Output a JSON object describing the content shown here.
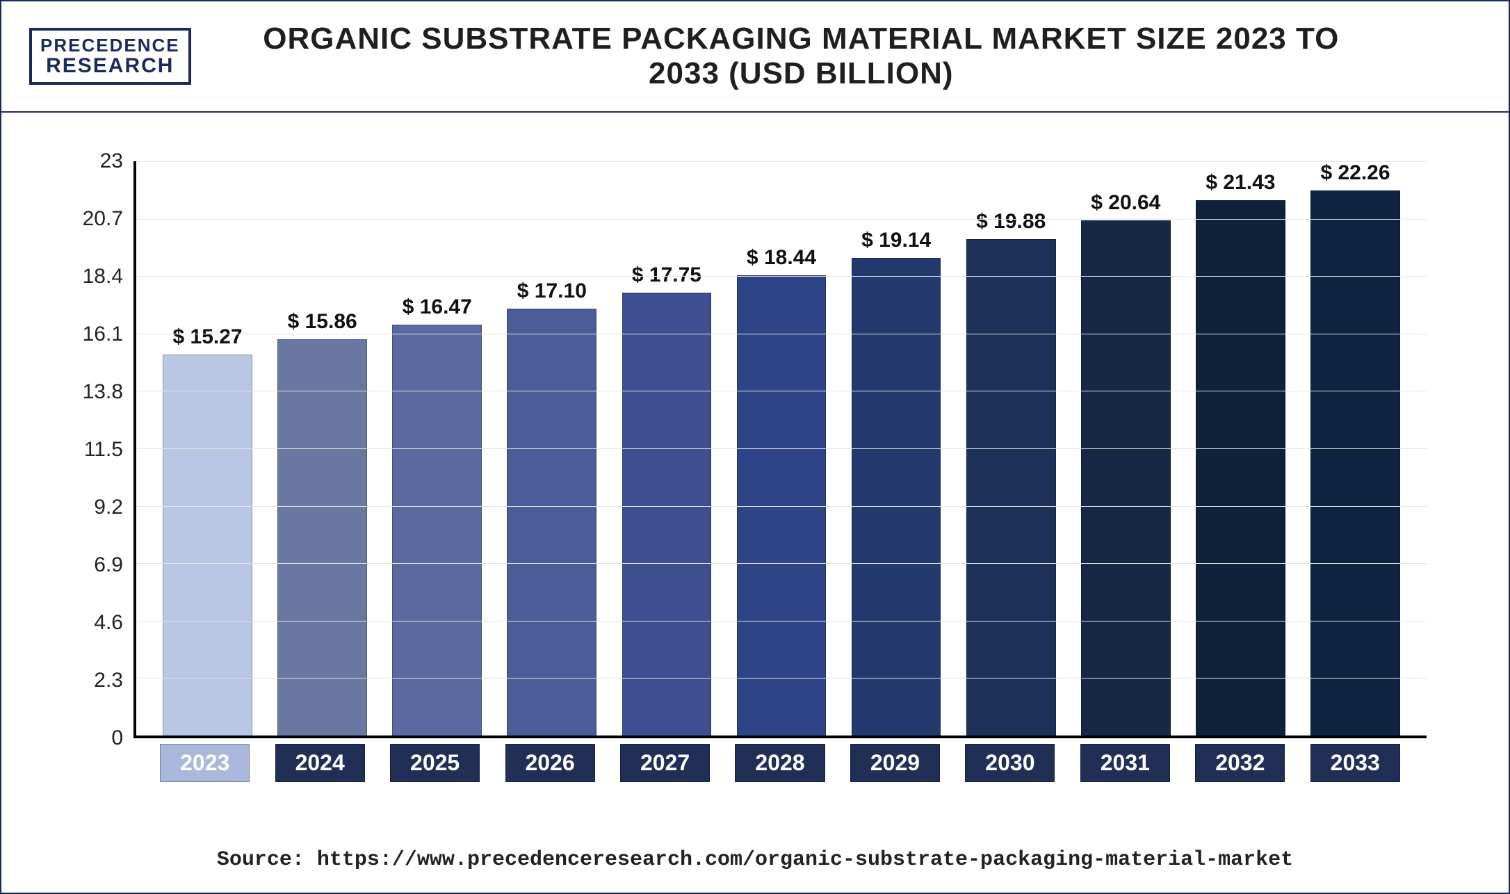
{
  "logo": {
    "line1": "PRECEDENCE",
    "line2": "RESEARCH"
  },
  "title": "ORGANIC SUBSTRATE PACKAGING MATERIAL MARKET SIZE 2023 TO 2033 (USD BILLION)",
  "source_label": "Source:",
  "source_url": "https://www.precedenceresearch.com/organic-substrate-packaging-material-market",
  "chart": {
    "type": "bar",
    "ylim": [
      0,
      23
    ],
    "ytick_step": 2.3,
    "yticks": [
      "0",
      "2.3",
      "4.6",
      "6.9",
      "9.2",
      "11.5",
      "13.8",
      "16.1",
      "18.4",
      "20.7",
      "23"
    ],
    "grid_color": "#e5e5e5",
    "axis_color": "#000000",
    "background": "#ffffff",
    "value_prefix": "$ ",
    "title_fontsize": 44,
    "label_fontsize": 30,
    "value_fontsize": 30,
    "xlabel_fontsize": 32,
    "bar_width_pct": 78,
    "categories": [
      "2023",
      "2024",
      "2025",
      "2026",
      "2027",
      "2028",
      "2029",
      "2030",
      "2031",
      "2032",
      "2033"
    ],
    "values": [
      15.27,
      15.86,
      16.47,
      17.1,
      17.75,
      18.44,
      19.14,
      19.88,
      20.64,
      21.43,
      22.26
    ],
    "value_labels": [
      "15.27",
      "15.86",
      "16.47",
      "17.10",
      "17.75",
      "18.44",
      "19.14",
      "19.88",
      "20.64",
      "21.43",
      "22.26"
    ],
    "bar_colors": [
      "#b9c6e4",
      "#6a77a3",
      "#5a6aa0",
      "#4b5c98",
      "#3d4f90",
      "#2f4387",
      "#24396e",
      "#1c3058",
      "#162843",
      "#10213a",
      "#0e233f"
    ],
    "xlabel_bg_colors": [
      "#a9b8dc",
      "#212e56",
      "#212e56",
      "#212e56",
      "#212e56",
      "#212e56",
      "#212e56",
      "#212e56",
      "#212e56",
      "#212e56",
      "#212e56"
    ]
  }
}
